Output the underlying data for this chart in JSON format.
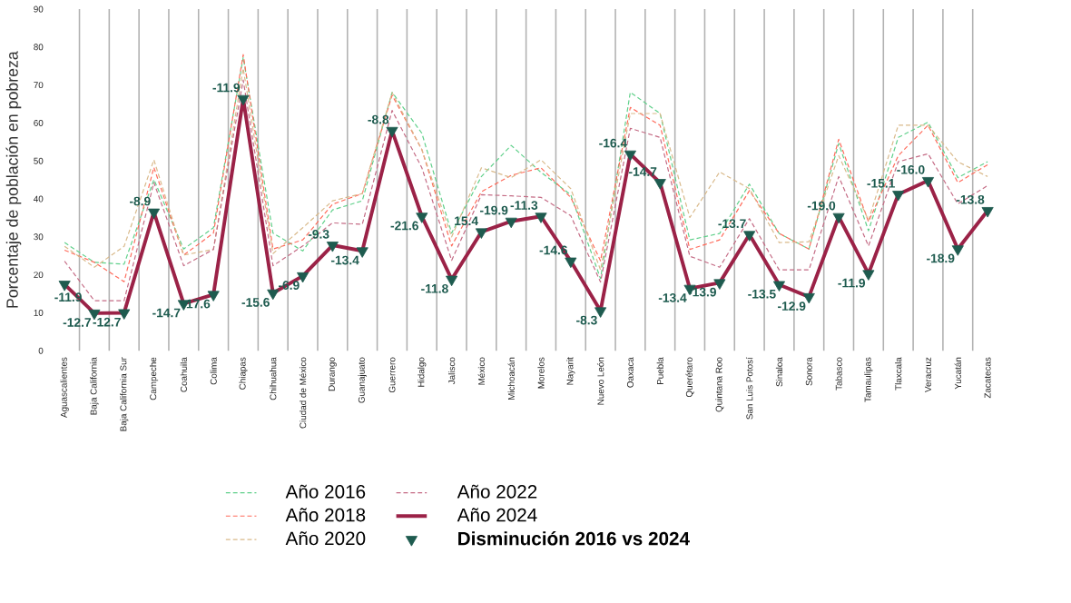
{
  "chart_data": {
    "type": "line",
    "ylabel": "Porcentaje de población en pobreza",
    "categories": [
      "Aguascalientes",
      "Baja California",
      "Baja California Sur",
      "Campeche",
      "Coahuila",
      "Colima",
      "Chiapas",
      "Chihuahua",
      "Ciudad de México",
      "Durango",
      "Guanajuato",
      "Guerrero",
      "Hidalgo",
      "Jalisco",
      "México",
      "Michoacán",
      "Morelos",
      "Nayarit",
      "Nuevo León",
      "Oaxaca",
      "Puebla",
      "Querétaro",
      "Quintana Roo",
      "San Luis Potosí",
      "Sinaloa",
      "Sonora",
      "Tabasco",
      "Tamaulipas",
      "Tlaxcala",
      "Veracruz",
      "Yucatán",
      "Zacatecas"
    ],
    "series": [
      {
        "name": "Año 2016",
        "color": "#5fd08a",
        "line_style": "dashed",
        "values": [
          28.5,
          23.3,
          22.8,
          45.1,
          26.8,
          32.4,
          77.3,
          31.0,
          26.3,
          37.1,
          39.5,
          68.1,
          57.3,
          31.0,
          45.9,
          54.1,
          47.0,
          41.1,
          19.0,
          68.1,
          62.5,
          29.2,
          30.9,
          43.9,
          30.9,
          26.8,
          54.6,
          31.6,
          56.2,
          60.2,
          45.6,
          49.8
        ]
      },
      {
        "name": "Año 2018",
        "color": "#ff6a5a",
        "line_style": "dashed",
        "values": [
          26.5,
          23.3,
          18.2,
          48.3,
          25.2,
          31.0,
          78.0,
          26.8,
          29.2,
          38.6,
          41.4,
          67.3,
          53.0,
          27.6,
          41.9,
          46.2,
          48.2,
          40.4,
          23.7,
          64.1,
          59.4,
          26.7,
          29.2,
          42.2,
          30.9,
          26.8,
          55.7,
          34.0,
          51.4,
          59.4,
          44.3,
          49.0
        ]
      },
      {
        "name": "Año 2020",
        "color": "#d9b98a",
        "line_style": "dashed",
        "values": [
          27.5,
          22.0,
          27.5,
          50.3,
          25.2,
          26.7,
          74.4,
          25.6,
          32.4,
          39.5,
          41.4,
          68.0,
          53.0,
          30.0,
          48.2,
          45.6,
          50.3,
          42.7,
          21.3,
          62.5,
          62.5,
          35.1,
          47.1,
          42.7,
          28.5,
          28.7,
          51.4,
          34.4,
          59.4,
          59.4,
          49.8,
          45.9
        ]
      },
      {
        "name": "Año 2022",
        "color": "#c46a84",
        "line_style": "dashed",
        "values": [
          23.6,
          13.2,
          13.2,
          44.3,
          22.4,
          26.7,
          71.3,
          22.4,
          27.6,
          33.7,
          33.3,
          63.3,
          48.2,
          23.8,
          41.1,
          40.8,
          40.4,
          35.6,
          18.1,
          58.6,
          56.2,
          24.9,
          22.0,
          34.8,
          21.3,
          21.3,
          45.9,
          27.6,
          49.8,
          51.9,
          38.7,
          43.5
        ]
      },
      {
        "name": "Año 2024",
        "color": "#9b2247",
        "line_style": "solid",
        "values": [
          17.5,
          9.9,
          10.0,
          36.5,
          12.4,
          14.8,
          66.4,
          15.2,
          19.7,
          27.8,
          26.3,
          58.0,
          35.4,
          18.8,
          31.3,
          34.1,
          35.4,
          23.6,
          10.5,
          51.8,
          44.3,
          16.4,
          17.9,
          30.6,
          17.4,
          14.2,
          35.3,
          20.3,
          41.2,
          44.8,
          26.8,
          36.9
        ]
      },
      {
        "name": "Disminución 2016 vs 2024",
        "type": "scatter",
        "marker": "triangle",
        "color": "#1e5b4f",
        "values": [
          17.5,
          9.9,
          10.0,
          36.5,
          12.4,
          14.8,
          66.4,
          15.2,
          19.7,
          27.8,
          26.3,
          58.0,
          35.4,
          18.8,
          31.3,
          34.1,
          35.4,
          23.6,
          10.5,
          51.8,
          44.3,
          16.4,
          17.9,
          30.6,
          17.4,
          14.2,
          35.3,
          20.3,
          41.2,
          44.8,
          26.8,
          36.9
        ]
      }
    ],
    "annotations": [
      {
        "text": "-11.9",
        "x": "Aguascalientes",
        "y": 17.5
      },
      {
        "text": "-12.7",
        "x": "Baja California",
        "y": 9.9
      },
      {
        "text": "-12.7",
        "x": "Baja California Sur",
        "y": 10.0
      },
      {
        "text": "-8.9",
        "x": "Campeche",
        "y": 36.5
      },
      {
        "text": "-14.7",
        "x": "Coahuila",
        "y": 12.4
      },
      {
        "text": "-17.6",
        "x": "Colima",
        "y": 14.8
      },
      {
        "text": "-11.9",
        "x": "Chiapas",
        "y": 66.4
      },
      {
        "text": "-15.6",
        "x": "Chihuahua",
        "y": 15.2
      },
      {
        "text": "-6.9",
        "x": "Ciudad de México",
        "y": 19.7
      },
      {
        "text": "-9.3",
        "x": "Durango",
        "y": 27.8
      },
      {
        "text": "-13.4",
        "x": "Guanajuato",
        "y": 26.3
      },
      {
        "text": "-8.8",
        "x": "Guerrero",
        "y": 58.0
      },
      {
        "text": "-21.6",
        "x": "Hidalgo",
        "y": 35.4
      },
      {
        "text": "-11.8",
        "x": "Jalisco",
        "y": 18.8
      },
      {
        "text": "15.4",
        "x": "México",
        "y": 31.3
      },
      {
        "text": "-19.9",
        "x": "Michoacán",
        "y": 34.1
      },
      {
        "text": "-11.3",
        "x": "Morelos",
        "y": 35.4
      },
      {
        "text": "-14.6",
        "x": "Nayarit",
        "y": 23.6
      },
      {
        "text": "-8.3",
        "x": "Nuevo León",
        "y": 10.5
      },
      {
        "text": "-16.4",
        "x": "Oaxaca",
        "y": 51.8
      },
      {
        "text": "-14.7",
        "x": "Puebla",
        "y": 44.3
      },
      {
        "text": "-13.4",
        "x": "Querétaro",
        "y": 16.4
      },
      {
        "text": "-13.9",
        "x": "Quintana Roo",
        "y": 17.9
      },
      {
        "text": "-13.7",
        "x": "San Luis Potosí",
        "y": 30.6
      },
      {
        "text": "-13.5",
        "x": "Sinaloa",
        "y": 17.4
      },
      {
        "text": "-12.9",
        "x": "Sonora",
        "y": 14.2
      },
      {
        "text": "-19.0",
        "x": "Tabasco",
        "y": 35.3
      },
      {
        "text": "-11.9",
        "x": "Tamaulipas",
        "y": 20.3
      },
      {
        "text": "-15.1",
        "x": "Tlaxcala",
        "y": 41.2
      },
      {
        "text": "-16.0",
        "x": "Veracruz",
        "y": 44.8
      },
      {
        "text": "-18.9",
        "x": "Yucatán",
        "y": 26.8
      },
      {
        "text": "-13.8",
        "x": "Zacatecas",
        "y": 36.9
      }
    ],
    "ylim": [
      0,
      90
    ],
    "yticks": [
      0,
      10,
      20,
      30,
      40,
      50,
      60,
      70,
      80,
      90
    ],
    "grid": "x",
    "legend": "bottom"
  }
}
